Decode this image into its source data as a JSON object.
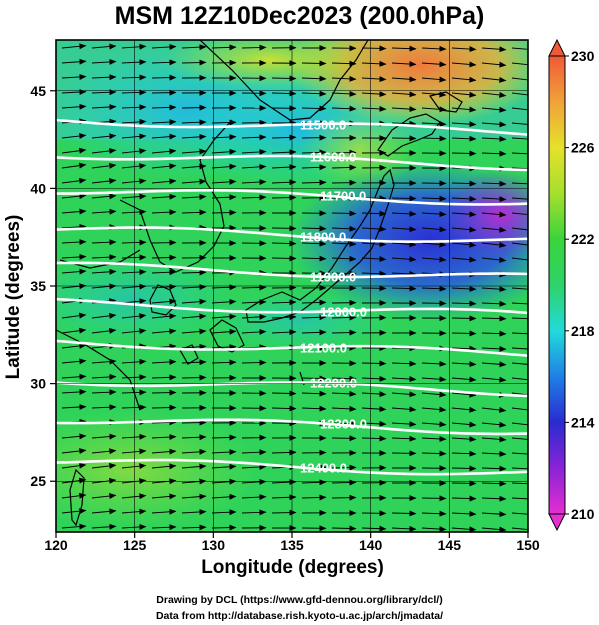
{
  "title": "MSM 12Z10Dec2023 (200.0hPa)",
  "xaxis": {
    "label": "Longitude (degrees)",
    "range": [
      120,
      150
    ],
    "ticks": [
      "120",
      "125",
      "130",
      "135",
      "140",
      "145",
      "150"
    ]
  },
  "yaxis": {
    "label": "Latitude  (degrees)",
    "range": [
      22.4,
      47.6
    ],
    "ticks": [
      "25",
      "30",
      "35",
      "40",
      "45"
    ]
  },
  "colorbar": {
    "min": 210,
    "max": 230,
    "ticks": [
      "230",
      "226",
      "222",
      "218",
      "214",
      "210"
    ],
    "colors": [
      "#e62ed2",
      "#8a24d6",
      "#2a2bd0",
      "#1f80e6",
      "#22dada",
      "#2ed36a",
      "#3bd43b",
      "#a5e02e",
      "#e6e12a",
      "#f0a23a",
      "#f07040",
      "#f05a38"
    ]
  },
  "contours": [
    {
      "label": "11500.0"
    },
    {
      "label": "11600.0"
    },
    {
      "label": "11700.0"
    },
    {
      "label": "11800.0"
    },
    {
      "label": "11900.0"
    },
    {
      "label": "12000.0"
    },
    {
      "label": "12100.0"
    },
    {
      "label": "12200.0"
    },
    {
      "label": "12300.0"
    },
    {
      "label": "12400.0"
    }
  ],
  "credits": [
    "Drawing by DCL (https://www.gfd-dennou.org/library/dcl/)",
    "Data from http://database.rish.kyoto-u.ac.jp/arch/jmadata/"
  ]
}
